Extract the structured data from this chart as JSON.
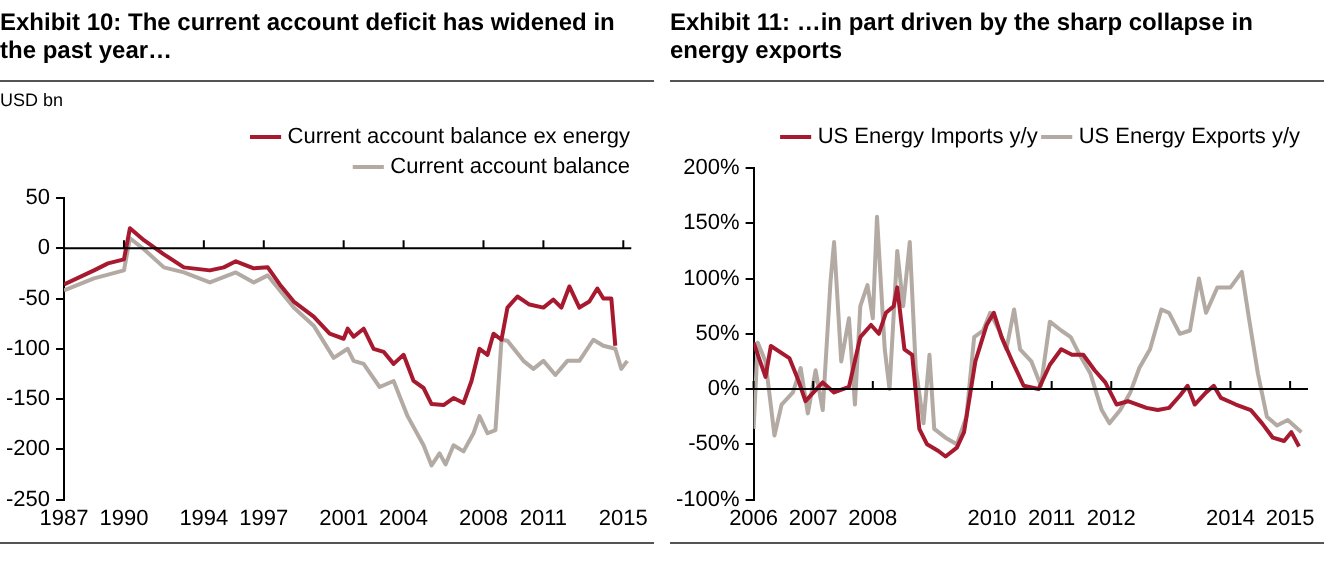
{
  "chart_data": [
    {
      "type": "line",
      "title": "Exhibit 10: The current account deficit has widened in the past year…",
      "ylabel": "USD bn",
      "legend": "top right",
      "marker": "none",
      "grid": false,
      "xlim": [
        1987,
        2015.4
      ],
      "xticks": [
        1987,
        1990,
        1994,
        1997,
        2001,
        2004,
        2008,
        2011,
        2015
      ],
      "ylim": [
        -250,
        50
      ],
      "yticks": [
        -250,
        -200,
        -150,
        -100,
        -50,
        0,
        50
      ],
      "ref_lines": [
        {
          "axis": "y",
          "value": 0,
          "color": "#000000"
        }
      ],
      "series": [
        {
          "name": "Current account balance ex energy",
          "color": "#a6192e",
          "x": [
            1987,
            1988.5,
            1989.2,
            1990,
            1990.3,
            1991,
            1992,
            1993,
            1994.3,
            1995,
            1995.6,
            1996.5,
            1997.2,
            1997.8,
            1998.5,
            1999.5,
            2000.3,
            2001,
            2001.2,
            2001.5,
            2002,
            2002.5,
            2003,
            2003.5,
            2004,
            2004.5,
            2005,
            2005.4,
            2006,
            2006.5,
            2007,
            2007.4,
            2007.8,
            2008.2,
            2008.5,
            2008.9,
            2009.2,
            2009.7,
            2010.3,
            2011,
            2011.5,
            2011.9,
            2012.3,
            2012.8,
            2013.3,
            2013.7,
            2014,
            2014.4,
            2014.6
          ],
          "values": [
            -36,
            -22,
            -15,
            -11,
            20,
            8,
            -6,
            -19,
            -22,
            -19,
            -13,
            -20,
            -19,
            -36,
            -53,
            -68,
            -85,
            -90,
            -80,
            -88,
            -80,
            -100,
            -103,
            -115,
            -106,
            -132,
            -139,
            -155,
            -156,
            -149,
            -154,
            -132,
            -100,
            -106,
            -85,
            -91,
            -59,
            -48,
            -56,
            -59,
            -51,
            -59,
            -38,
            -59,
            -53,
            -40,
            -50,
            -50,
            -97
          ]
        },
        {
          "name": "Current account balance",
          "color": "#b3aaa3",
          "x": [
            1987,
            1988.5,
            1990,
            1990.3,
            1991,
            1992,
            1993,
            1994.3,
            1995.6,
            1996.5,
            1997.2,
            1998.5,
            1999.5,
            2000.5,
            2001.2,
            2001.5,
            2002,
            2002.8,
            2003.5,
            2004.2,
            2005,
            2005.4,
            2005.8,
            2006.1,
            2006.5,
            2007,
            2007.5,
            2007.8,
            2008.2,
            2008.6,
            2008.9,
            2009.2,
            2010,
            2010.5,
            2011,
            2011.6,
            2012.2,
            2012.8,
            2013.5,
            2014,
            2014.6,
            2014.9,
            2015.2
          ],
          "values": [
            -42,
            -30,
            -22,
            10,
            -1,
            -19,
            -24,
            -34,
            -24,
            -34,
            -27,
            -59,
            -77,
            -109,
            -100,
            -112,
            -115,
            -138,
            -132,
            -167,
            -196,
            -216,
            -204,
            -215,
            -196,
            -202,
            -184,
            -167,
            -184,
            -181,
            -91,
            -92,
            -112,
            -120,
            -112,
            -126,
            -112,
            -112,
            -91,
            -97,
            -100,
            -120,
            -112
          ]
        }
      ]
    },
    {
      "type": "line",
      "title": "Exhibit 11: …in part driven by the sharp collapse in energy exports",
      "legend": "top right",
      "marker": "none",
      "grid": false,
      "xlim": [
        2006,
        2015.3
      ],
      "xticks": [
        2006,
        2007,
        2008,
        2010,
        2011,
        2012,
        2014,
        2015
      ],
      "ylim": [
        -100,
        200
      ],
      "yticks": [
        {
          "value": -100,
          "label": "-100%"
        },
        {
          "value": -50,
          "label": "-50%"
        },
        {
          "value": 0,
          "label": "0%"
        },
        {
          "value": 50,
          "label": "50%"
        },
        {
          "value": 100,
          "label": "100%"
        },
        {
          "value": 150,
          "label": "150%"
        },
        {
          "value": 200,
          "label": "200%"
        }
      ],
      "ref_lines": [
        {
          "axis": "y",
          "value": 0,
          "color": "#000000"
        }
      ],
      "series": [
        {
          "name": "US Energy Imports y/y",
          "color": "#a6192e",
          "x": [
            2006,
            2006.2,
            2006.29,
            2006.6,
            2006.75,
            2006.87,
            2007.16,
            2007.35,
            2007.6,
            2007.79,
            2007.97,
            2008.1,
            2008.22,
            2008.35,
            2008.41,
            2008.53,
            2008.66,
            2008.78,
            2008.91,
            2009.1,
            2009.22,
            2009.41,
            2009.53,
            2009.72,
            2009.91,
            2010.03,
            2010.16,
            2010.34,
            2010.53,
            2010.78,
            2010.97,
            2011.16,
            2011.34,
            2011.53,
            2011.72,
            2011.9,
            2012.09,
            2012.28,
            2012.59,
            2012.78,
            2012.97,
            2013.15,
            2013.28,
            2013.4,
            2013.59,
            2013.72,
            2013.84,
            2014.09,
            2014.34,
            2014.53,
            2014.71,
            2014.9,
            2015.02,
            2015.15
          ],
          "values": [
            42,
            11,
            39,
            28,
            8,
            -11,
            6,
            -3,
            2,
            47,
            58,
            50,
            69,
            75,
            92,
            36,
            31,
            -36,
            -50,
            -56,
            -61,
            -53,
            -39,
            25,
            58,
            69,
            47,
            25,
            3,
            0,
            22,
            36,
            31,
            31,
            17,
            6,
            -14,
            -11,
            -17,
            -19,
            -17,
            -6,
            3,
            -14,
            -3,
            3,
            -8,
            -14,
            -19,
            -31,
            -44,
            -47,
            -39,
            -52
          ]
        },
        {
          "name": "US Energy Exports y/y",
          "color": "#b3aaa3",
          "x": [
            2006,
            2006.07,
            2006.2,
            2006.35,
            2006.47,
            2006.66,
            2006.79,
            2006.91,
            2007.04,
            2007.16,
            2007.29,
            2007.35,
            2007.47,
            2007.6,
            2007.7,
            2007.79,
            2007.91,
            2008,
            2008.07,
            2008.2,
            2008.28,
            2008.41,
            2008.51,
            2008.62,
            2008.72,
            2008.85,
            2008.95,
            2009.03,
            2009.22,
            2009.41,
            2009.57,
            2009.7,
            2009.85,
            2009.97,
            2010.12,
            2010.24,
            2010.37,
            2010.47,
            2010.66,
            2010.82,
            2010.97,
            2011.16,
            2011.32,
            2011.47,
            2011.65,
            2011.84,
            2011.97,
            2012.15,
            2012.32,
            2012.47,
            2012.65,
            2012.84,
            2012.97,
            2013.15,
            2013.32,
            2013.47,
            2013.59,
            2013.78,
            2014,
            2014.19,
            2014.31,
            2014.46,
            2014.61,
            2014.78,
            2014.96,
            2015.19
          ],
          "values": [
            -36,
            42,
            25,
            -42,
            -14,
            -3,
            19,
            -22,
            17,
            -19,
            97,
            133,
            25,
            64,
            -14,
            75,
            94,
            64,
            156,
            36,
            0,
            125,
            75,
            133,
            19,
            -31,
            31,
            -36,
            -44,
            -50,
            -25,
            47,
            53,
            69,
            53,
            36,
            72,
            36,
            25,
            3,
            61,
            53,
            47,
            31,
            14,
            -19,
            -31,
            -19,
            -3,
            19,
            36,
            72,
            69,
            50,
            53,
            100,
            69,
            92,
            92,
            106,
            64,
            14,
            -25,
            -33,
            -28,
            -39
          ]
        }
      ]
    }
  ]
}
